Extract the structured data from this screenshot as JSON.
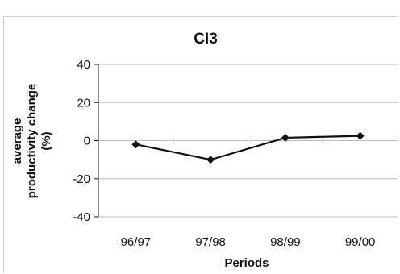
{
  "chart_data": {
    "type": "line",
    "title": "CI3",
    "xlabel": "Periods",
    "ylabel_lines": [
      "average",
      "productivity change",
      "(%)"
    ],
    "categories": [
      "96/97",
      "97/98",
      "98/99",
      "99/00"
    ],
    "series": [
      {
        "values": [
          -2,
          -10,
          1.5,
          2.5
        ]
      }
    ],
    "ylim": [
      -40,
      40
    ],
    "yticks": [
      40,
      20,
      0,
      -20,
      -40
    ],
    "grid": true,
    "colors": {
      "line": "#111111",
      "marker": "#111111",
      "grid": "#bdbdbd"
    }
  }
}
